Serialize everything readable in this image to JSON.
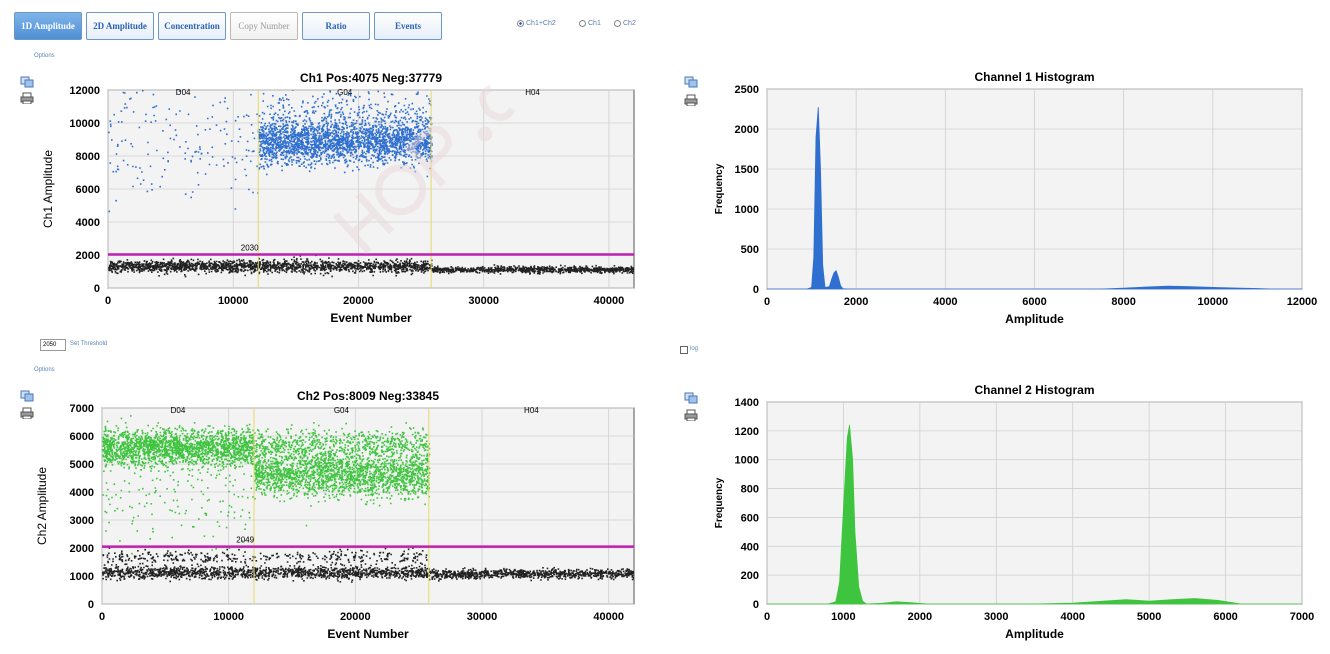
{
  "tabs": [
    {
      "label": "1D Amplitude",
      "state": "active"
    },
    {
      "label": "2D Amplitude",
      "state": "normal"
    },
    {
      "label": "Concentration",
      "state": "normal"
    },
    {
      "label": "Copy Number",
      "state": "disabled"
    },
    {
      "label": "Ratio",
      "state": "normal"
    },
    {
      "label": "Events",
      "state": "normal"
    }
  ],
  "radios": [
    {
      "label": "Ch1+Ch2",
      "checked": true
    },
    {
      "label": "Ch1",
      "checked": false
    },
    {
      "label": "Ch2",
      "checked": false
    }
  ],
  "options_label": "Options",
  "threshold_input_value": "2050",
  "set_threshold_label": "Set Threshold",
  "log_checkbox_label": "log",
  "colors": {
    "ch1": "#2f6fcf",
    "ch2": "#3fc43f",
    "negative": "#222222",
    "threshold": "#c020b0",
    "well_divider": "#e8d86a"
  },
  "chart_data": [
    {
      "type": "scatter",
      "title": "Ch1 Pos:4075 Neg:37779",
      "xlabel": "Event Number",
      "ylabel": "Ch1 Amplitude",
      "xlim": [
        0,
        42000
      ],
      "ylim": [
        0,
        12000
      ],
      "xticks": [
        "0",
        "10000",
        "20000",
        "30000",
        "40000"
      ],
      "yticks": [
        "0",
        "2000",
        "4000",
        "6000",
        "8000",
        "10000",
        "12000"
      ],
      "wells": [
        {
          "name": "D04",
          "start": 0,
          "end": 12000
        },
        {
          "name": "G04",
          "start": 12000,
          "end": 25800
        },
        {
          "name": "H04",
          "start": 25800,
          "end": 42000
        }
      ],
      "threshold": 2030,
      "threshold_label": "2030",
      "clusters": [
        {
          "class": "positive",
          "x_range": [
            0,
            12000
          ],
          "y_center": 9000,
          "y_spread": 1800,
          "count": 170
        },
        {
          "class": "positive",
          "x_range": [
            12000,
            25800
          ],
          "y_center": 8900,
          "y_spread": 650,
          "count": 2400
        },
        {
          "class": "positive-rain",
          "x_range": [
            12000,
            25800
          ],
          "y_center": 10500,
          "y_spread": 900,
          "count": 350
        },
        {
          "class": "negative",
          "x_range": [
            0,
            25800
          ],
          "y_center": 1350,
          "y_spread": 180,
          "count": 1800
        },
        {
          "class": "negative",
          "x_range": [
            25800,
            42000
          ],
          "y_center": 1150,
          "y_spread": 90,
          "count": 900
        }
      ]
    },
    {
      "type": "area",
      "title": "Channel 1 Histogram",
      "xlabel": "Amplitude",
      "ylabel": "Frequency",
      "xlim": [
        0,
        12000
      ],
      "ylim": [
        0,
        2500
      ],
      "xticks": [
        "0",
        "2000",
        "4000",
        "6000",
        "8000",
        "10000",
        "12000"
      ],
      "yticks": [
        "0",
        "500",
        "1000",
        "1500",
        "2000",
        "2500"
      ],
      "x": [
        0,
        900,
        1000,
        1050,
        1100,
        1150,
        1200,
        1250,
        1300,
        1400,
        1450,
        1500,
        1550,
        1600,
        1650,
        1700,
        1800,
        7500,
        8000,
        8500,
        9000,
        9500,
        10000,
        10500,
        11000,
        11300,
        12000
      ],
      "values": [
        0,
        0,
        20,
        400,
        1900,
        2270,
        1500,
        300,
        20,
        30,
        120,
        200,
        230,
        150,
        40,
        5,
        0,
        0,
        10,
        25,
        35,
        30,
        20,
        12,
        6,
        0,
        0
      ]
    },
    {
      "type": "scatter",
      "title": "Ch2 Pos:8009 Neg:33845",
      "xlabel": "Event Number",
      "ylabel": "Ch2 Amplitude",
      "xlim": [
        0,
        42000
      ],
      "ylim": [
        0,
        7000
      ],
      "xticks": [
        "0",
        "10000",
        "20000",
        "30000",
        "40000"
      ],
      "yticks": [
        "0",
        "1000",
        "2000",
        "3000",
        "4000",
        "5000",
        "6000",
        "7000"
      ],
      "wells": [
        {
          "name": "D04",
          "start": 0,
          "end": 12000
        },
        {
          "name": "G04",
          "start": 12000,
          "end": 25800
        },
        {
          "name": "H04",
          "start": 25800,
          "end": 42000
        }
      ],
      "threshold": 2049,
      "threshold_label": "2049",
      "clusters": [
        {
          "class": "positive",
          "x_range": [
            0,
            12000
          ],
          "y_center": 5600,
          "y_spread": 320,
          "count": 2000
        },
        {
          "class": "positive-rain",
          "x_range": [
            0,
            12000
          ],
          "y_center": 3800,
          "y_spread": 900,
          "count": 160
        },
        {
          "class": "positive",
          "x_range": [
            12000,
            25800
          ],
          "y_center": 4650,
          "y_spread": 380,
          "count": 2000
        },
        {
          "class": "positive-rain",
          "x_range": [
            12000,
            25800
          ],
          "y_center": 5700,
          "y_spread": 280,
          "count": 700
        },
        {
          "class": "negative",
          "x_range": [
            0,
            25800
          ],
          "y_center": 1150,
          "y_spread": 110,
          "count": 1400
        },
        {
          "class": "negative-rain",
          "x_range": [
            0,
            25800
          ],
          "y_center": 1700,
          "y_spread": 120,
          "count": 350
        },
        {
          "class": "negative",
          "x_range": [
            25800,
            42000
          ],
          "y_center": 1100,
          "y_spread": 80,
          "count": 900
        }
      ]
    },
    {
      "type": "area",
      "title": "Channel 2 Histogram",
      "xlabel": "Amplitude",
      "ylabel": "Frequency",
      "xlim": [
        0,
        7000
      ],
      "ylim": [
        0,
        1400
      ],
      "xticks": [
        "0",
        "1000",
        "2000",
        "3000",
        "4000",
        "5000",
        "6000",
        "7000"
      ],
      "yticks": [
        "0",
        "200",
        "400",
        "600",
        "800",
        "1000",
        "1200",
        "1400"
      ],
      "x": [
        0,
        800,
        900,
        950,
        1000,
        1050,
        1080,
        1120,
        1150,
        1200,
        1250,
        1300,
        1500,
        1700,
        1900,
        2100,
        3500,
        4000,
        4400,
        4700,
        5000,
        5300,
        5600,
        5900,
        6100,
        6200,
        7000
      ],
      "values": [
        0,
        0,
        15,
        150,
        650,
        1150,
        1240,
        1000,
        500,
        120,
        20,
        0,
        5,
        15,
        8,
        0,
        0,
        6,
        20,
        30,
        20,
        30,
        38,
        25,
        8,
        0,
        0
      ]
    }
  ]
}
